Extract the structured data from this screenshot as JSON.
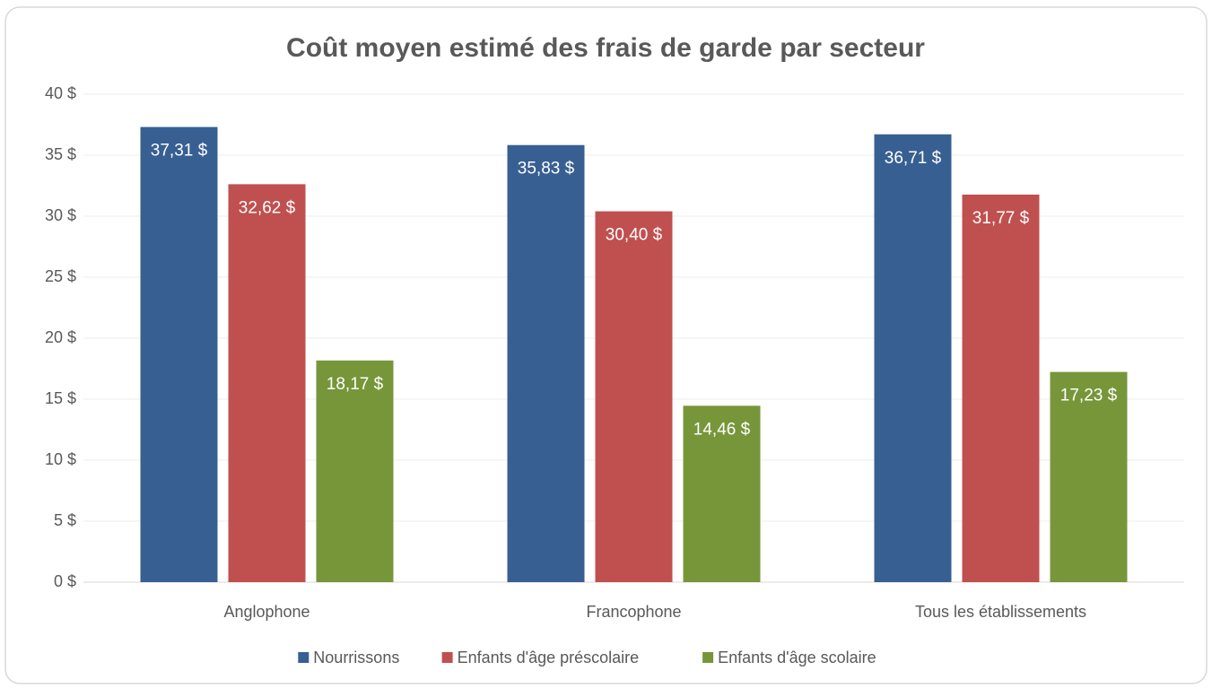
{
  "chart_data": {
    "type": "bar",
    "title": "Coût moyen estimé des frais de garde par secteur",
    "categories": [
      "Anglophone",
      "Francophone",
      "Tous les établissements"
    ],
    "series": [
      {
        "name": "Nourrissons",
        "color": "#375f92",
        "values": [
          37.31,
          35.83,
          36.71
        ],
        "value_labels": [
          "37,31 $",
          "35,83 $",
          "36,71 $"
        ]
      },
      {
        "name": "Enfants d'âge préscolaire",
        "color": "#c0504f",
        "values": [
          32.62,
          30.4,
          31.77
        ],
        "value_labels": [
          "32,62 $",
          "30,40 $",
          "31,77 $"
        ]
      },
      {
        "name": "Enfants d'âge scolaire",
        "color": "#77963a",
        "values": [
          18.17,
          14.46,
          17.23
        ],
        "value_labels": [
          "18,17 $",
          "14,46 $",
          "17,23 $"
        ]
      }
    ],
    "ylim": [
      0,
      40
    ],
    "yticks": [
      {
        "value": 0,
        "label": "0 $"
      },
      {
        "value": 5,
        "label": "5 $"
      },
      {
        "value": 10,
        "label": "10 $"
      },
      {
        "value": 15,
        "label": "15 $"
      },
      {
        "value": 20,
        "label": "20 $"
      },
      {
        "value": 25,
        "label": "25 $"
      },
      {
        "value": 30,
        "label": "30 $"
      },
      {
        "value": 35,
        "label": "35 $"
      },
      {
        "value": 40,
        "label": "40 $"
      }
    ],
    "grid": true,
    "legend": "bottom"
  }
}
